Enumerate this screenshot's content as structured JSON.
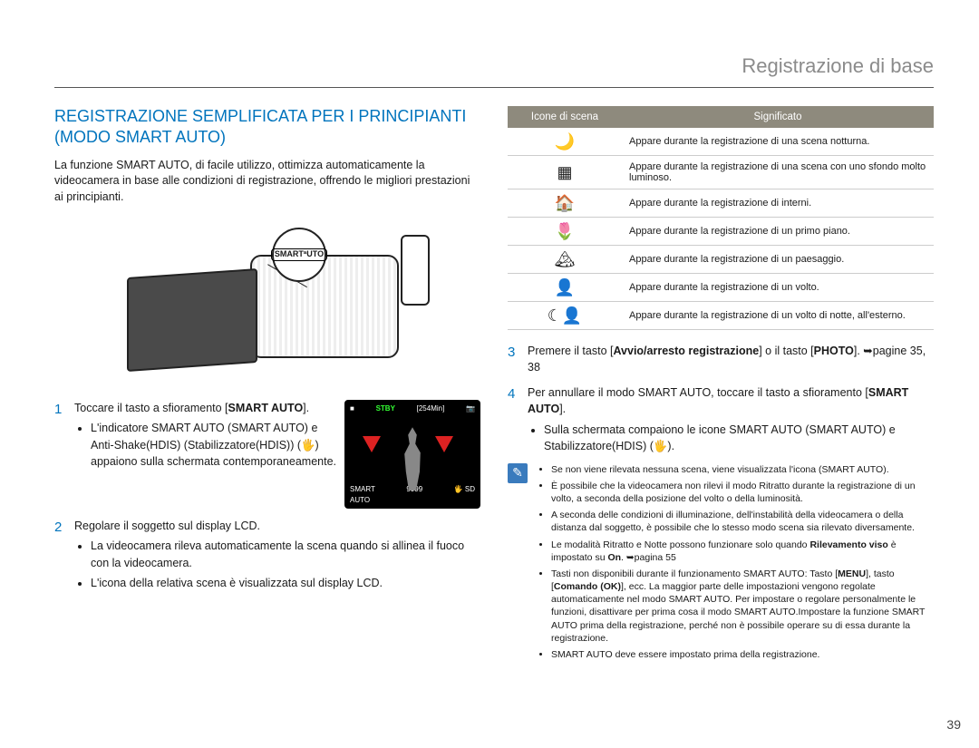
{
  "header": "Registrazione di base",
  "title": "REGISTRAZIONE SEMPLIFICATA PER I PRINCIPIANTI (MODO SMART AUTO)",
  "intro": "La funzione SMART AUTO, di facile utilizzo, ottimizza automaticamente la videocamera in base alle condizioni di registrazione, offrendo le migliori prestazioni ai principianti.",
  "lcd": {
    "stby": "STBY",
    "time": "[254Min]",
    "count": "9999"
  },
  "step1": {
    "line1_a": "Toccare il tasto a sfioramento [",
    "line1_b": "SMART AUTO",
    "line1_c": "].",
    "bullet1": "L'indicatore SMART AUTO (SMART AUTO) e Anti-Shake(HDIS) (Stabilizzatore(HDIS)) (🖐) appaiono sulla schermata contemporaneamente."
  },
  "step2": {
    "text": "Regolare il soggetto sul display LCD.",
    "bullet1": "La videocamera rileva automaticamente la scena quando si allinea il fuoco con la videocamera.",
    "bullet2": "L'icona della relativa scena è visualizzata sul display LCD."
  },
  "table": {
    "h1": "Icone di scena",
    "h2": "Significato",
    "rows": [
      {
        "icon": "🌙",
        "desc": "Appare durante la registrazione di una scena notturna."
      },
      {
        "icon": "▦",
        "desc": "Appare durante la registrazione di una scena con uno sfondo molto luminoso."
      },
      {
        "icon": "🏠",
        "desc": "Appare durante la registrazione di interni."
      },
      {
        "icon": "🌷",
        "desc": "Appare durante la registrazione di un primo piano."
      },
      {
        "icon": "🏔",
        "desc": "Appare durante la registrazione di un paesaggio."
      },
      {
        "icon": "👤",
        "desc": "Appare durante la registrazione di un volto."
      },
      {
        "icon": "☾👤",
        "desc": "Appare durante la registrazione di un volto di notte, all'esterno."
      }
    ]
  },
  "step3": {
    "a": "Premere il tasto [",
    "b": "Avvio/arresto registrazione",
    "c": "] o il tasto [",
    "d": "PHOTO",
    "e": "]. ➥pagine 35, 38"
  },
  "step4": {
    "a": "Per annullare il modo SMART AUTO, toccare il tasto a sfioramento [",
    "b": "SMART AUTO",
    "c": "].",
    "bullet1": "Sulla schermata compaiono le icone SMART AUTO (SMART AUTO) e Stabilizzatore(HDIS) (🖐)."
  },
  "notes": [
    "Se non viene rilevata nessuna scena, viene visualizzata  l'icona (SMART AUTO).",
    "È possibile che la videocamera non rilevi il modo Ritratto durante la registrazione di un volto, a seconda della posizione del volto o della luminosità.",
    "A seconda delle condizioni di illuminazione, dell'instabilità della videocamera o della distanza dal soggetto, è possibile che lo stesso modo scena sia rilevato diversamente.",
    "Le modalità Ritratto e Notte possono funzionare solo quando Rilevamento viso è impostato su On. ➥pagina 55",
    "Tasti non disponibili durante il funzionamento SMART AUTO: Tasto [MENU], tasto [Comando (OK)], ecc. La maggior parte delle impostazioni vengono regolate automaticamente nel modo SMART AUTO. Per impostare o regolare personalmente le funzioni, disattivare per prima cosa il modo SMART AUTO.Impostare la funzione SMART AUTO prima della registrazione, perché non è possibile operare su di essa durante la registrazione.",
    "SMART AUTO deve essere impostato prima della registrazione."
  ],
  "page_number": "39"
}
